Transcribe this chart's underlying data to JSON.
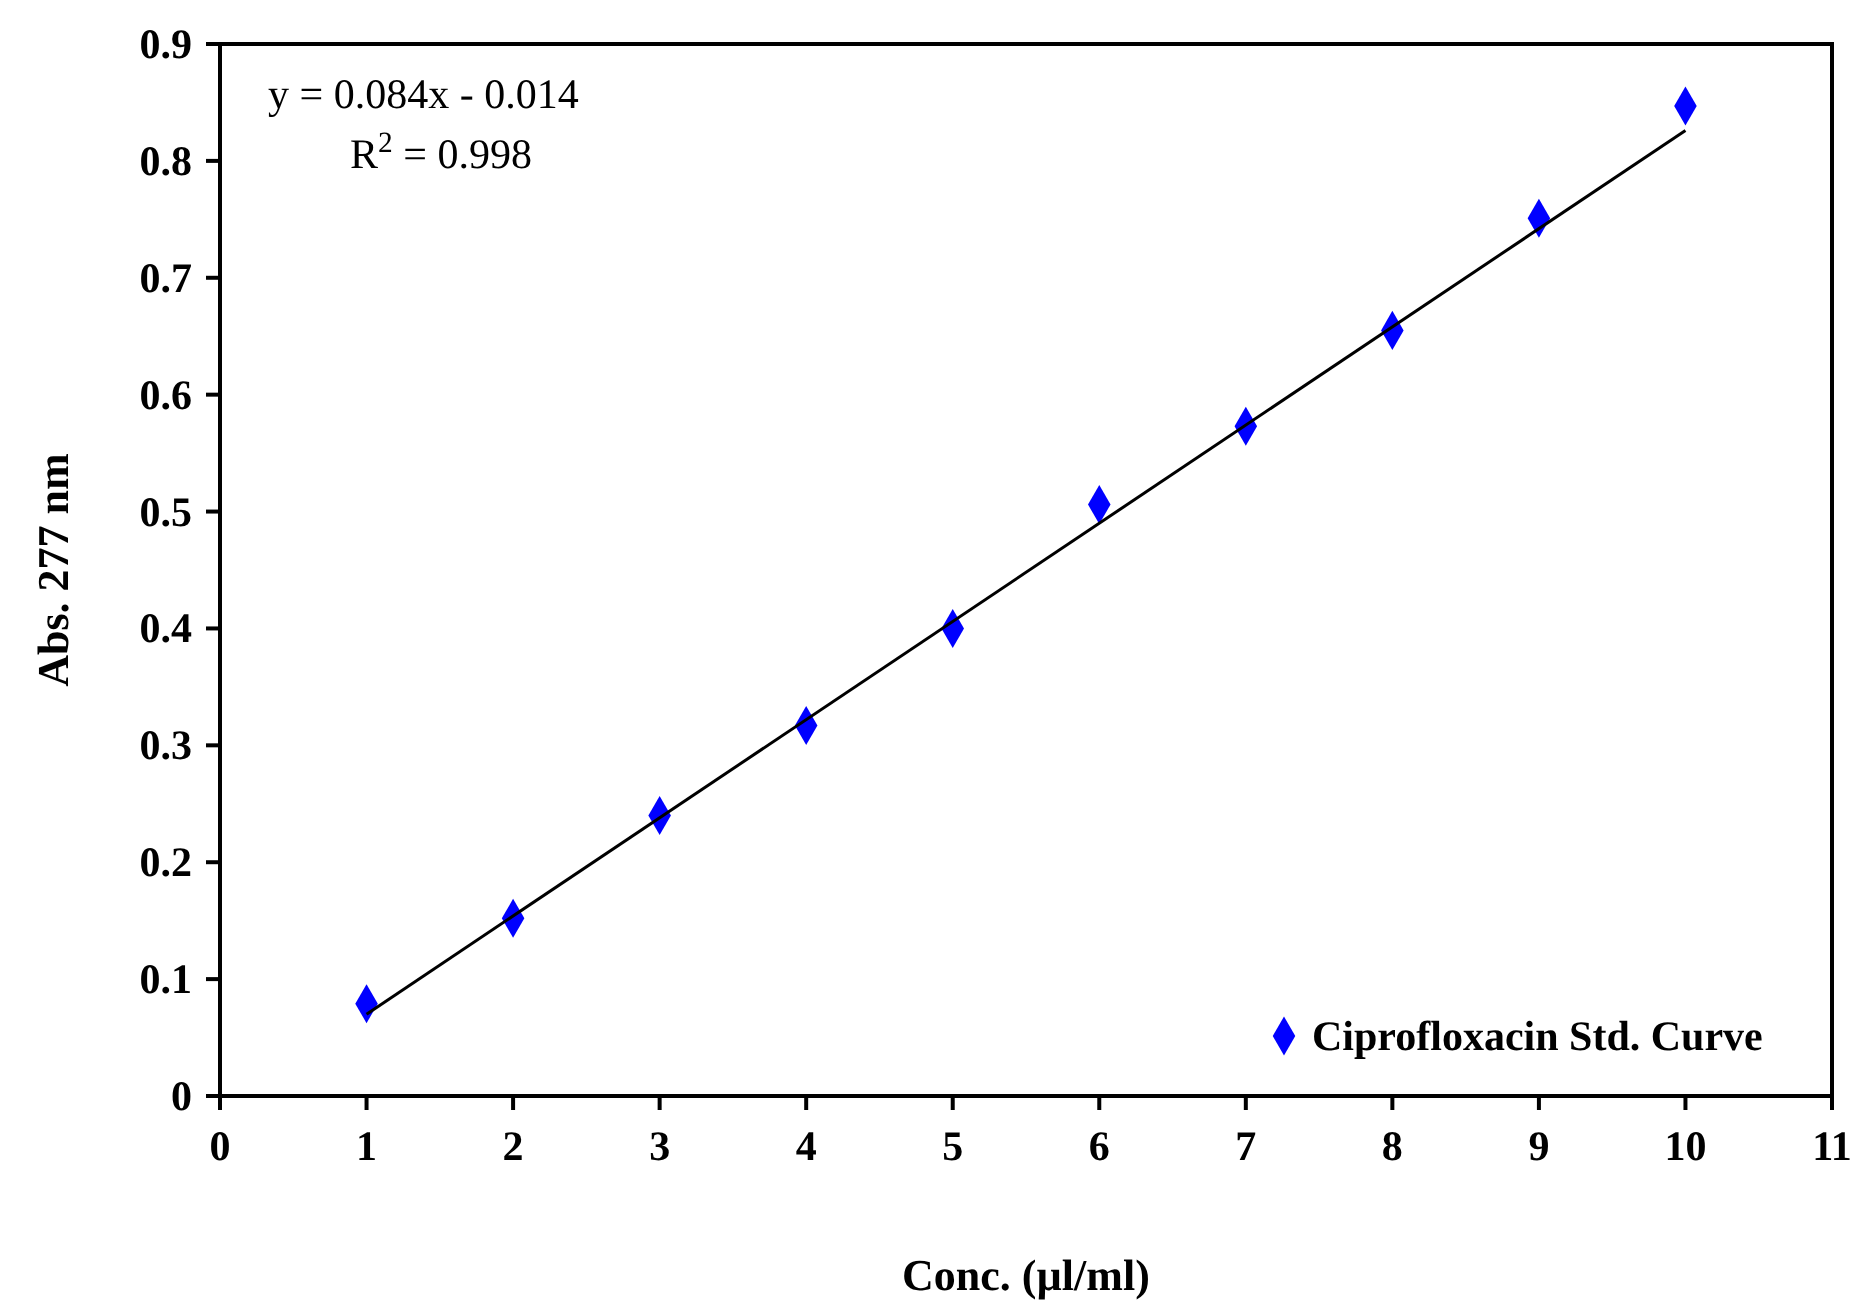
{
  "chart_data": {
    "type": "scatter",
    "xlabel": "Conc. (µl/ml)",
    "ylabel": "Abs. 277 nm",
    "x": [
      1,
      2,
      3,
      4,
      5,
      6,
      7,
      8,
      9,
      10
    ],
    "series": [
      {
        "name": "Ciprofloxacin Std. Curve",
        "color": "#0000ff",
        "marker": "diamond",
        "values": [
          0.079,
          0.152,
          0.24,
          0.317,
          0.4,
          0.506,
          0.573,
          0.655,
          0.751,
          0.847
        ]
      },
      {
        "type": "line",
        "color": "#000000",
        "marker": "none",
        "x": [
          1,
          10
        ],
        "values": [
          0.07,
          0.826
        ]
      }
    ],
    "annotations": [
      "y = 0.084x - 0.014",
      "R$^{2}$ = 0.998"
    ],
    "xlim": [
      0,
      11
    ],
    "xticks": [
      0,
      1,
      2,
      3,
      4,
      5,
      6,
      7,
      8,
      9,
      10,
      11
    ],
    "ylim": [
      0,
      0.9
    ],
    "yticks": [
      0,
      0.1,
      0.2,
      0.3,
      0.4,
      0.5,
      0.6,
      0.7,
      0.8,
      0.9
    ],
    "legend": "bottom right",
    "grid": false
  }
}
